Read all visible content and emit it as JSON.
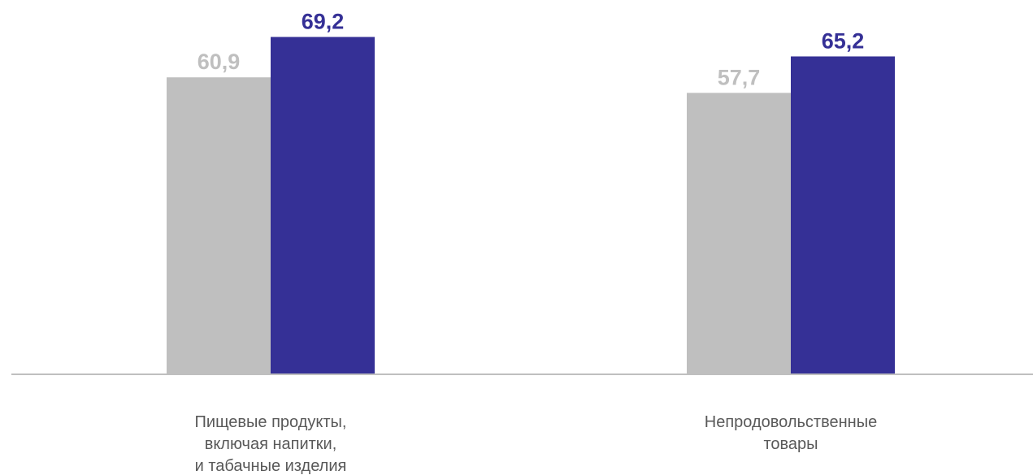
{
  "chart_data": {
    "type": "bar",
    "categories": [
      [
        "Пищевые продукты,",
        "включая напитки,",
        "и табачные изделия"
      ],
      [
        "Непродовольственные",
        "товары"
      ]
    ],
    "series": [
      {
        "values": [
          60.9,
          57.7
        ],
        "labels": [
          "60,9",
          "57,7"
        ],
        "color": "#bfbfbf",
        "label_color": "#bfbfbf"
      },
      {
        "values": [
          69.2,
          65.2
        ],
        "labels": [
          "69,2",
          "65,2"
        ],
        "color": "#353096",
        "label_color": "#353096"
      }
    ],
    "ylim": [
      0,
      76.8
    ],
    "grid": false,
    "legend": "none",
    "axis_color": "#bfbfbf"
  }
}
